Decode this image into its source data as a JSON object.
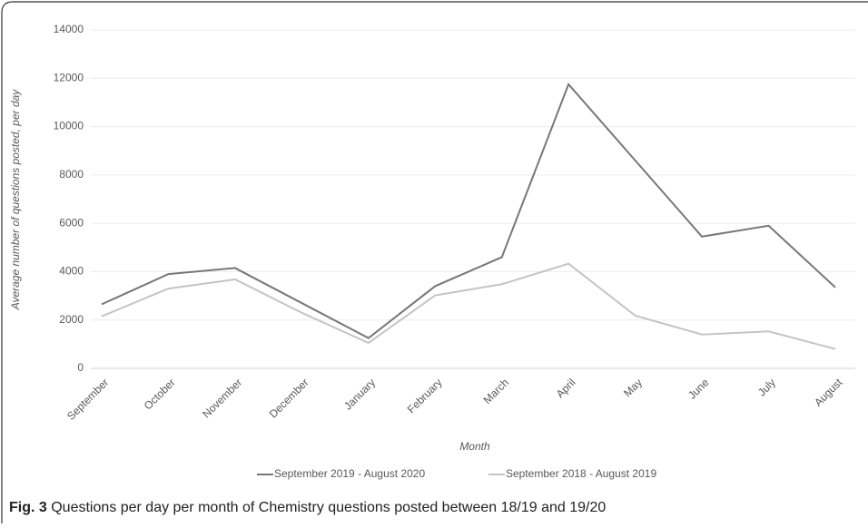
{
  "chart_data": {
    "type": "line",
    "x_label": "Month",
    "y_label": "Average number of questions posted, per day",
    "categories": [
      "September",
      "October",
      "November",
      "December",
      "January",
      "February",
      "March",
      "April",
      "May",
      "June",
      "July",
      "August"
    ],
    "series": [
      {
        "name": "September 2019 - August 2020",
        "color": "#777777",
        "values": [
          2650,
          3900,
          4150,
          2700,
          1250,
          3400,
          4600,
          11750,
          8600,
          5450,
          5900,
          3350
        ]
      },
      {
        "name": "September 2018 - August 2019",
        "color": "#c4c4c4",
        "values": [
          2150,
          3300,
          3680,
          2300,
          1050,
          3020,
          3480,
          4330,
          2180,
          1400,
          1530,
          800
        ]
      }
    ],
    "ylim": [
      0,
      14000
    ],
    "yticks": [
      0,
      2000,
      4000,
      6000,
      8000,
      10000,
      12000,
      14000
    ],
    "grid": true,
    "legend": "bottom"
  },
  "caption": {
    "label": "Fig. 3",
    "text": "Questions per day per month of Chemistry questions posted between 18/19 and 19/20"
  }
}
